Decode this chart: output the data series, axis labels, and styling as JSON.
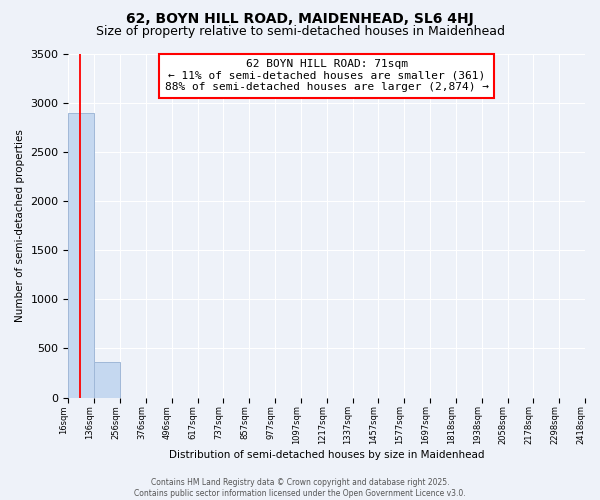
{
  "title": "62, BOYN HILL ROAD, MAIDENHEAD, SL6 4HJ",
  "subtitle": "Size of property relative to semi-detached houses in Maidenhead",
  "xlabel": "Distribution of semi-detached houses by size in Maidenhead",
  "ylabel": "Number of semi-detached properties",
  "bar_values": [
    2900,
    361,
    0,
    0,
    0,
    0,
    0,
    0,
    0,
    0,
    0,
    0,
    0,
    0,
    0,
    0,
    0,
    0,
    0,
    0
  ],
  "bar_color": "#c5d8f0",
  "bar_edge_color": "#a0b8d8",
  "x_labels": [
    "16sqm",
    "136sqm",
    "256sqm",
    "376sqm",
    "496sqm",
    "617sqm",
    "737sqm",
    "857sqm",
    "977sqm",
    "1097sqm",
    "1217sqm",
    "1337sqm",
    "1457sqm",
    "1577sqm",
    "1697sqm",
    "1818sqm",
    "1938sqm",
    "2058sqm",
    "2178sqm",
    "2298sqm",
    "2418sqm"
  ],
  "ylim": [
    0,
    3500
  ],
  "yticks": [
    0,
    500,
    1000,
    1500,
    2000,
    2500,
    3000,
    3500
  ],
  "red_line_x": 0.46,
  "annotation_title": "62 BOYN HILL ROAD: 71sqm",
  "annotation_line1": "← 11% of semi-detached houses are smaller (361)",
  "annotation_line2": "88% of semi-detached houses are larger (2,874) →",
  "footer_line1": "Contains HM Land Registry data © Crown copyright and database right 2025.",
  "footer_line2": "Contains public sector information licensed under the Open Government Licence v3.0.",
  "bg_color": "#eef2f9",
  "grid_color": "#ffffff",
  "title_fontsize": 10,
  "subtitle_fontsize": 9
}
